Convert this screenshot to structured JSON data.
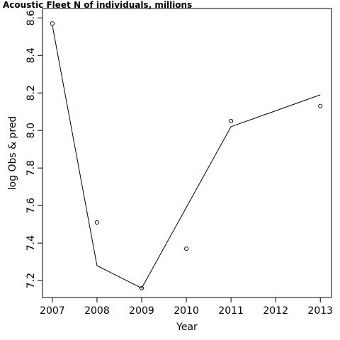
{
  "chart_data": {
    "type": "line",
    "title": "Acoustic Fleet   N of individuals, millions",
    "xlabel": "Year",
    "ylabel": "log Obs & pred",
    "xlim": [
      2006.78,
      2013.25
    ],
    "ylim": [
      7.11,
      8.65
    ],
    "x_ticks": [
      2007,
      2008,
      2009,
      2010,
      2011,
      2012,
      2013
    ],
    "y_ticks": [
      7.2,
      7.4,
      7.6,
      7.8,
      8.0,
      8.2,
      8.4,
      8.6
    ],
    "x_tick_labels": [
      "2007",
      "2008",
      "2009",
      "2010",
      "2011",
      "2012",
      "2013"
    ],
    "y_tick_labels": [
      "7.2",
      "7.4",
      "7.6",
      "7.8",
      "8.0",
      "8.2",
      "8.4",
      "8.6"
    ],
    "grid": false,
    "series": [
      {
        "role": "observed",
        "style": "points",
        "x": [
          2007,
          2008,
          2009,
          2010,
          2011,
          2013
        ],
        "y": [
          8.57,
          7.51,
          7.16,
          7.37,
          8.05,
          8.13
        ]
      },
      {
        "role": "predicted",
        "style": "line",
        "x": [
          2007,
          2008,
          2009,
          2011,
          2013
        ],
        "y": [
          8.56,
          7.28,
          7.16,
          8.02,
          8.19
        ]
      }
    ]
  }
}
